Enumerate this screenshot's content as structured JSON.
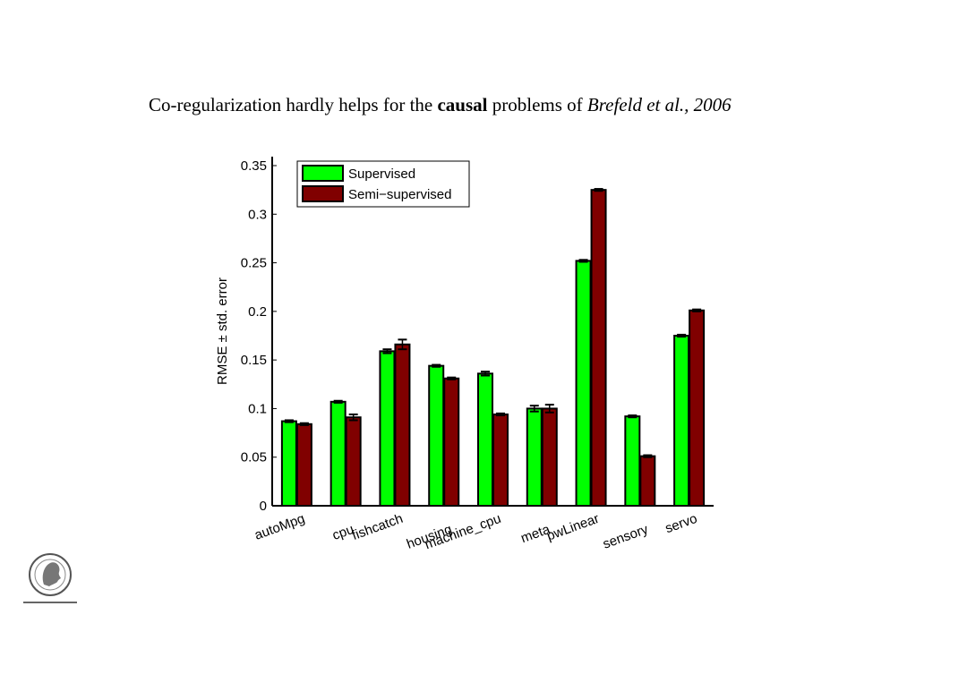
{
  "slide": {
    "title_plain": "Co-regularization hardly helps for the ",
    "title_bold": "causal",
    "title_mid": " problems of ",
    "title_italic": "Brefeld et al., 2006",
    "logo_text": "MAX-PLANCK-GESELLSCHAFT"
  },
  "chart_data": {
    "type": "bar",
    "title": "",
    "xlabel": "",
    "ylabel": "RMSE ± std. error",
    "ylim": [
      0,
      0.35
    ],
    "yticks": [
      "0",
      "0.05",
      "0.1",
      "0.15",
      "0.2",
      "0.25",
      "0.3",
      "0.35"
    ],
    "grid": false,
    "legend_position": "top-left",
    "categories": [
      "autoMpg",
      "cpu",
      "fishcatch",
      "housing",
      "machine_cpu",
      "meta",
      "pwLinear",
      "sensory",
      "servo"
    ],
    "series": [
      {
        "name": "Supervised",
        "color": "#00ff00",
        "values": [
          0.087,
          0.107,
          0.159,
          0.144,
          0.136,
          0.1,
          0.252,
          0.092,
          0.175
        ],
        "errors": [
          0.001,
          0.001,
          0.002,
          0.001,
          0.002,
          0.003,
          0.001,
          0.001,
          0.001
        ]
      },
      {
        "name": "Semi−supervised",
        "color": "#800000",
        "values": [
          0.084,
          0.091,
          0.166,
          0.131,
          0.094,
          0.1,
          0.325,
          0.051,
          0.201
        ],
        "errors": [
          0.001,
          0.003,
          0.005,
          0.001,
          0.001,
          0.004,
          0.001,
          0.001,
          0.001
        ]
      }
    ]
  }
}
